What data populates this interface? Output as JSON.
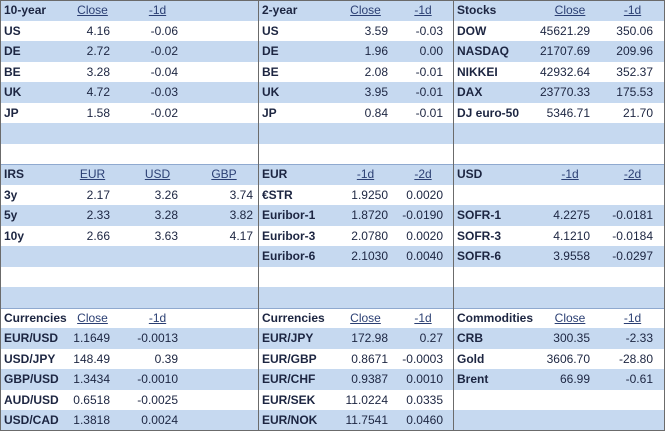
{
  "groups": [
    {
      "panels": [
        {
          "columns": [
            "10-year",
            "Close",
            "-1d"
          ],
          "rows": [
            [
              "US",
              "4.16",
              "-0.06"
            ],
            [
              "DE",
              "2.72",
              "-0.02"
            ],
            [
              "BE",
              "3.28",
              "-0.04"
            ],
            [
              "UK",
              "4.72",
              "-0.03"
            ],
            [
              "JP",
              "1.58",
              "-0.02"
            ]
          ]
        },
        {
          "columns": [
            "IRS",
            "EUR",
            "USD",
            "GBP"
          ],
          "rows": [
            [
              "3y",
              "2.17",
              "3.26",
              "3.74"
            ],
            [
              "5y",
              "2.33",
              "3.28",
              "3.82"
            ],
            [
              "10y",
              "2.66",
              "3.63",
              "4.17"
            ]
          ]
        },
        {
          "columns": [
            "Currencies",
            "Close",
            "-1d"
          ],
          "rows": [
            [
              "EUR/USD",
              "1.1649",
              "-0.0013"
            ],
            [
              "USD/JPY",
              "148.49",
              "0.39"
            ],
            [
              "GBP/USD",
              "1.3434",
              "-0.0010"
            ],
            [
              "AUD/USD",
              "0.6518",
              "-0.0025"
            ],
            [
              "USD/CAD",
              "1.3818",
              "0.0024"
            ]
          ]
        }
      ]
    },
    {
      "panels": [
        {
          "columns": [
            "2-year",
            "Close",
            "-1d"
          ],
          "rows": [
            [
              "US",
              "3.59",
              "-0.03"
            ],
            [
              "DE",
              "1.96",
              "0.00"
            ],
            [
              "BE",
              "2.08",
              "-0.01"
            ],
            [
              "UK",
              "3.95",
              "-0.01"
            ],
            [
              "JP",
              "0.84",
              "-0.01"
            ]
          ]
        },
        {
          "columns": [
            "EUR",
            "-1d",
            "-2d"
          ],
          "rows": [
            [
              "€STR",
              "1.9250",
              "0.0020"
            ],
            [
              "Euribor-1",
              "1.8720",
              "-0.0190"
            ],
            [
              "Euribor-3",
              "2.0780",
              "0.0020"
            ],
            [
              "Euribor-6",
              "2.1030",
              "0.0040"
            ]
          ]
        },
        {
          "columns": [
            "Currencies",
            "Close",
            "-1d"
          ],
          "rows": [
            [
              "EUR/JPY",
              "172.98",
              "0.27"
            ],
            [
              "EUR/GBP",
              "0.8671",
              "-0.0003"
            ],
            [
              "EUR/CHF",
              "0.9387",
              "0.0010"
            ],
            [
              "EUR/SEK",
              "11.0224",
              "0.0335"
            ],
            [
              "EUR/NOK",
              "11.7541",
              "0.0460"
            ]
          ]
        }
      ]
    },
    {
      "panels": [
        {
          "columns": [
            "Stocks",
            "Close",
            "-1d"
          ],
          "rows": [
            [
              "DOW",
              "45621.29",
              "350.06"
            ],
            [
              "NASDAQ",
              "21707.69",
              "209.96"
            ],
            [
              "NIKKEI",
              "42932.64",
              "352.37"
            ],
            [
              "DAX",
              "23770.33",
              "175.53"
            ],
            [
              "DJ euro-50",
              "5346.71",
              "21.70"
            ]
          ]
        },
        {
          "columns": [
            "USD",
            "-1d",
            "-2d"
          ],
          "rows": [
            null,
            [
              "SOFR-1",
              "4.2275",
              "-0.0181"
            ],
            [
              "SOFR-3",
              "4.1210",
              "-0.0184"
            ],
            [
              "SOFR-6",
              "3.9558",
              "-0.0297"
            ]
          ]
        },
        {
          "columns": [
            "Commodities",
            "Close",
            "-1d"
          ],
          "rows": [
            [
              "CRB",
              "300.35",
              "-2.33"
            ],
            [
              "Gold",
              "3606.70",
              "-28.80"
            ],
            [
              "Brent",
              "66.99",
              "-0.61"
            ]
          ]
        }
      ]
    }
  ]
}
